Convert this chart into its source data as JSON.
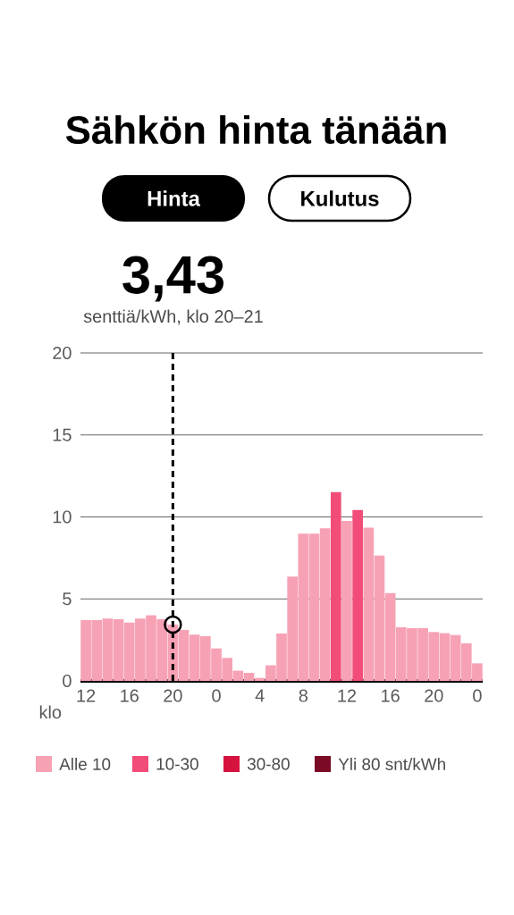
{
  "chart_data": {
    "type": "bar",
    "title": "Sähkön hinta tänään",
    "subtitle": "senttiä/kWh, klo 20–21",
    "xlabel": "klo",
    "annotations": [
      "3,43",
      "Hinta",
      "Kulutus"
    ],
    "categories": [
      "12",
      null,
      null,
      null,
      "16",
      null,
      null,
      null,
      "20",
      null,
      null,
      null,
      "0",
      null,
      null,
      null,
      "4",
      null,
      null,
      null,
      "8",
      null,
      null,
      null,
      "12",
      null,
      null,
      null,
      "16",
      null,
      null,
      null,
      "20",
      null,
      null,
      null,
      "0"
    ],
    "series": [
      {
        "name": "Alle 10",
        "color": "#f7a1b5",
        "values": [
          3.71,
          3.7,
          3.8,
          3.76,
          3.56,
          3.8,
          4.0,
          3.76,
          3.43,
          3.11,
          2.82,
          2.73,
          1.98,
          1.4,
          0.62,
          0.49,
          0.18,
          0.95,
          2.89,
          6.36,
          8.98,
          8.98,
          9.31,
          null,
          9.76,
          null,
          9.35,
          7.64,
          5.36,
          3.27,
          3.22,
          3.22,
          2.98,
          2.91,
          2.8,
          2.29,
          1.07
        ]
      },
      {
        "name": "10-30",
        "color": "#f24d78",
        "values": [
          null,
          null,
          null,
          null,
          null,
          null,
          null,
          null,
          null,
          null,
          null,
          null,
          null,
          null,
          null,
          null,
          null,
          null,
          null,
          null,
          null,
          null,
          null,
          11.51,
          null,
          10.42,
          null,
          null,
          null,
          null,
          null,
          null,
          null,
          null,
          null,
          null,
          null
        ]
      },
      {
        "name": "30-80",
        "color": "#d6133f",
        "values": [
          null,
          null,
          null,
          null,
          null,
          null,
          null,
          null,
          null,
          null,
          null,
          null,
          null,
          null,
          null,
          null,
          null,
          null,
          null,
          null,
          null,
          null,
          null,
          null,
          null,
          null,
          null,
          null,
          null,
          null,
          null,
          null,
          null,
          null,
          null,
          null,
          null
        ]
      },
      {
        "name": "Yli 80 snt/kWh",
        "color": "#7a0a26",
        "values": [
          null,
          null,
          null,
          null,
          null,
          null,
          null,
          null,
          null,
          null,
          null,
          null,
          null,
          null,
          null,
          null,
          null,
          null,
          null,
          null,
          null,
          null,
          null,
          null,
          null,
          null,
          null,
          null,
          null,
          null,
          null,
          null,
          null,
          null,
          null,
          null,
          null
        ]
      },
      {
        "type": "scatter",
        "color": "#000000",
        "marker": "circle",
        "x": [
          "20"
        ],
        "values": [
          3.43
        ]
      }
    ],
    "ylim": [
      0,
      20
    ],
    "yticks": [
      0,
      5,
      10,
      15,
      20
    ],
    "grid": "y",
    "legend": "bottom",
    "ref_lines": [
      {
        "axis": "x",
        "value": "20",
        "line_style": "dashed",
        "color": "#000000"
      }
    ]
  }
}
